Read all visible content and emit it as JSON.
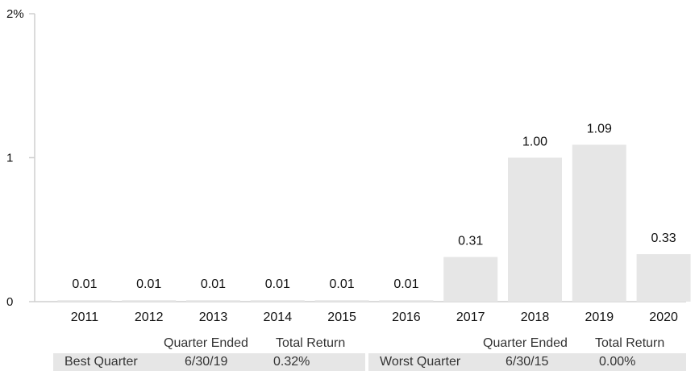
{
  "chart_data": {
    "type": "bar",
    "categories": [
      "2011",
      "2012",
      "2013",
      "2014",
      "2015",
      "2016",
      "2017",
      "2018",
      "2019",
      "2020"
    ],
    "values": [
      0.01,
      0.01,
      0.01,
      0.01,
      0.01,
      0.01,
      0.31,
      1.0,
      1.09,
      0.33
    ],
    "data_labels": [
      "0.01",
      "0.01",
      "0.01",
      "0.01",
      "0.01",
      "0.01",
      "0.31",
      "1.00",
      "1.09",
      "0.33"
    ],
    "yticks": [
      "0",
      "1",
      "2%"
    ],
    "ylim": [
      0,
      2
    ],
    "bar_color": "#e6e6e6",
    "axis_color": "#cfcfcf"
  },
  "quarters": {
    "header_quarter_ended": "Quarter Ended",
    "header_total_return": "Total Return",
    "best": {
      "label": "Best Quarter",
      "date": "6/30/19",
      "return": "0.32%"
    },
    "worst": {
      "label": "Worst Quarter",
      "date": "6/30/15",
      "return": "0.00%"
    }
  }
}
